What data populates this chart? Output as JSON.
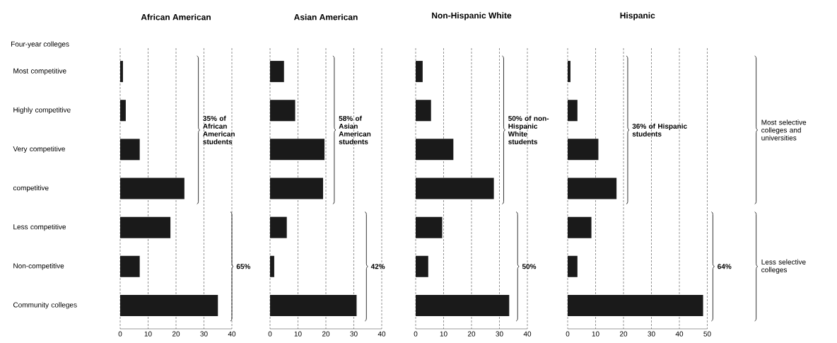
{
  "chart_data": [
    {
      "type": "bar",
      "orientation": "horizontal",
      "title": "African American",
      "categories": [
        "Most competitive",
        "Highly competitive",
        "Very competitive",
        "competitive",
        "Less competitive",
        "Non-competitive",
        "Community colleges"
      ],
      "values": [
        1,
        2,
        7,
        23,
        18,
        7,
        35
      ],
      "color": "#1a1a1a",
      "xlim": [
        0,
        40
      ],
      "xticks": [
        0,
        10,
        20,
        30,
        40
      ],
      "grid": "x",
      "annotations": [
        "35% of African American students",
        "65%",
        "Four-year colleges"
      ]
    },
    {
      "type": "bar",
      "orientation": "horizontal",
      "title": "Asian American",
      "categories": [
        null,
        null,
        null,
        null,
        null,
        null,
        null
      ],
      "values": [
        5,
        9,
        19.5,
        19,
        6,
        1.5,
        31
      ],
      "color": "#1a1a1a",
      "xlim": [
        0,
        40
      ],
      "xticks": [
        0,
        10,
        20,
        30,
        40
      ],
      "grid": "x",
      "annotations": [
        "58% of Asian American students",
        "42%"
      ]
    },
    {
      "type": "bar",
      "orientation": "horizontal",
      "title": "Non-Hispanic White",
      "categories": [
        null,
        null,
        null,
        null,
        null,
        null,
        null
      ],
      "values": [
        2.5,
        5.5,
        13.5,
        28,
        9.5,
        4.5,
        33.5
      ],
      "color": "#1a1a1a",
      "xlim": [
        0,
        40
      ],
      "xticks": [
        0,
        10,
        20,
        30,
        40
      ],
      "grid": "x",
      "annotations": [
        "50% of non-Hispanic White students",
        "50%"
      ]
    },
    {
      "type": "bar",
      "orientation": "horizontal",
      "title": "Hispanic",
      "categories": [
        null,
        null,
        null,
        null,
        null,
        null,
        null
      ],
      "values": [
        1,
        3.5,
        11,
        17.5,
        8.5,
        3.5,
        48.5
      ],
      "color": "#1a1a1a",
      "xlim": [
        0,
        50
      ],
      "xticks": [
        0,
        10,
        20,
        30,
        40,
        50
      ],
      "grid": "x",
      "annotations": [
        "36% of Hispanic students",
        "64%",
        "Most selective colleges and universities",
        "Less selective colleges"
      ]
    }
  ]
}
